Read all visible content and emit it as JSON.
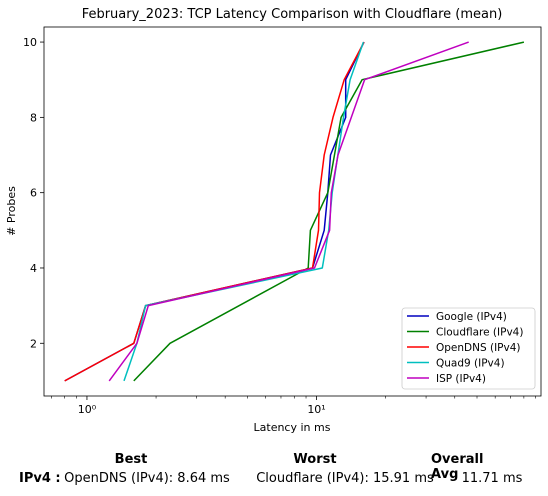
{
  "chart_data": {
    "type": "line",
    "title": "February_2023: TCP Latency Comparison with Cloudflare (mean)",
    "xlabel": "Latency in ms",
    "ylabel": "# Probes",
    "xscale": "log",
    "xlim": [
      0.65,
      95
    ],
    "ylim": [
      0.6,
      10.4
    ],
    "xticks": [
      {
        "value": 1,
        "label": "10⁰"
      },
      {
        "value": 10,
        "label": "10¹"
      }
    ],
    "yticks": [
      2,
      4,
      6,
      8,
      10
    ],
    "grid": false,
    "legend_position": "lower-right",
    "series": [
      {
        "name": "Google (IPv4)",
        "color": "#0000bf",
        "x": [
          0.8,
          1.6,
          1.8,
          9.6,
          10.8,
          11.2,
          11.5,
          13.4,
          13.4,
          16.1
        ],
        "y": [
          1,
          2,
          3,
          4,
          5,
          6,
          7,
          8,
          9,
          10
        ]
      },
      {
        "name": "Cloudflare (IPv4)",
        "color": "#008000",
        "x": [
          1.6,
          2.3,
          9.2,
          9.4,
          11.2,
          12.8,
          15.8,
          80.0
        ],
        "y": [
          1,
          2,
          4,
          5,
          6,
          8,
          9,
          10
        ]
      },
      {
        "name": "OpenDNS (IPv4)",
        "color": "#ff0000",
        "x": [
          0.8,
          1.6,
          1.8,
          9.6,
          10.2,
          10.3,
          10.8,
          11.8,
          13.2,
          16.1
        ],
        "y": [
          1,
          2,
          3,
          4,
          5,
          6,
          7,
          8,
          9,
          10
        ]
      },
      {
        "name": "Quad9 (IPv4)",
        "color": "#00bfbf",
        "x": [
          1.45,
          1.65,
          1.8,
          10.6,
          11.3,
          11.7,
          13.1,
          14.0,
          16.0
        ],
        "y": [
          1,
          2,
          3,
          4,
          5,
          6,
          8,
          9,
          10
        ]
      },
      {
        "name": "ISP (IPv4)",
        "color": "#bf00bf",
        "x": [
          1.25,
          1.65,
          1.85,
          9.8,
          11.4,
          11.6,
          12.4,
          16.2,
          46.0
        ],
        "y": [
          1,
          2,
          3,
          4,
          5,
          6,
          7,
          9,
          10
        ]
      }
    ]
  },
  "summary": {
    "headers": {
      "best": "Best",
      "worst": "Worst",
      "overall": "Overall Avg"
    },
    "rows": [
      {
        "label": "IPv4 :",
        "best": "OpenDNS (IPv4): 8.64 ms",
        "worst": "Cloudflare (IPv4): 15.91 ms",
        "overall": "11.71 ms"
      }
    ]
  }
}
